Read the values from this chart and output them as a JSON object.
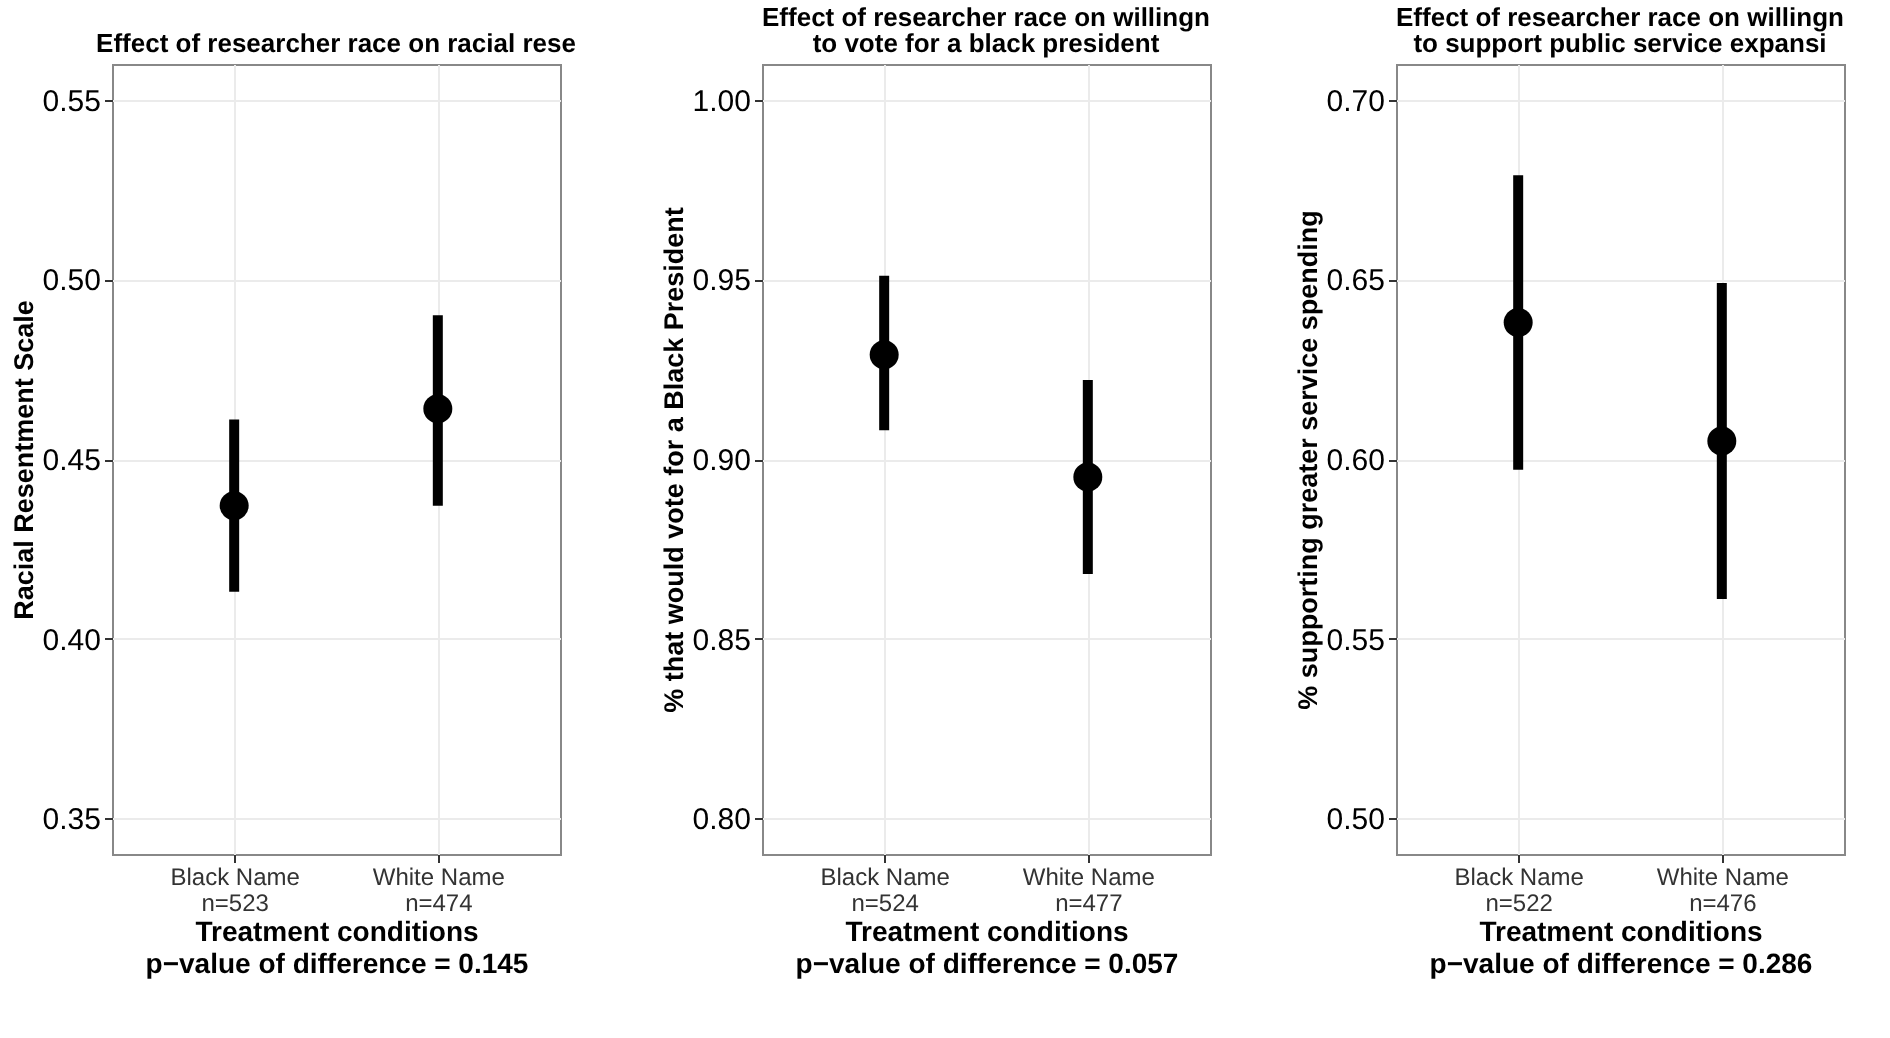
{
  "chart_data": [
    {
      "type": "scatter",
      "title": "Effect of researcher race on racial rese",
      "xlabel": "Treatment conditions",
      "ylabel": "Racial Resentment Scale",
      "annotations": [
        "p−value of difference = 0.145"
      ],
      "categories": [
        "Black Name\nn=523",
        "White Name\nn=474"
      ],
      "values": [
        0.437,
        0.464
      ],
      "errors": [
        [
          0.413,
          0.461
        ],
        [
          0.437,
          0.49
        ]
      ],
      "color": "#000000",
      "marker": "circle",
      "ylim": [
        0.34,
        0.56
      ],
      "yticks": [
        {
          "value": 0.35,
          "label": "0.35"
        },
        {
          "value": 0.4,
          "label": "0.40"
        },
        {
          "value": 0.45,
          "label": "0.45"
        },
        {
          "value": 0.5,
          "label": "0.50"
        },
        {
          "value": 0.55,
          "label": "0.55"
        }
      ],
      "grid": true
    },
    {
      "type": "scatter",
      "title": "Effect of researcher race on willingn\nto vote for a black president",
      "xlabel": "Treatment conditions",
      "ylabel": "% that would vote for a Black President",
      "annotations": [
        "p−value of difference = 0.057"
      ],
      "categories": [
        "Black Name\nn=524",
        "White Name\nn=477"
      ],
      "values": [
        0.929,
        0.895
      ],
      "errors": [
        [
          0.908,
          0.951
        ],
        [
          0.868,
          0.922
        ]
      ],
      "color": "#000000",
      "marker": "circle",
      "ylim": [
        0.79,
        1.01
      ],
      "yticks": [
        {
          "value": 0.8,
          "label": "0.80"
        },
        {
          "value": 0.85,
          "label": "0.85"
        },
        {
          "value": 0.9,
          "label": "0.90"
        },
        {
          "value": 0.95,
          "label": "0.95"
        },
        {
          "value": 1.0,
          "label": "1.00"
        }
      ],
      "grid": true
    },
    {
      "type": "scatter",
      "title": "Effect of researcher race on willingn\nto support public service expansi",
      "xlabel": "Treatment conditions",
      "ylabel": "% supporting greater service spending",
      "annotations": [
        "p−value of difference = 0.286"
      ],
      "categories": [
        "Black Name\nn=522",
        "White Name\nn=476"
      ],
      "values": [
        0.638,
        0.605
      ],
      "errors": [
        [
          0.597,
          0.679
        ],
        [
          0.561,
          0.649
        ]
      ],
      "color": "#000000",
      "marker": "circle",
      "ylim": [
        0.49,
        0.71
      ],
      "yticks": [
        {
          "value": 0.5,
          "label": "0.50"
        },
        {
          "value": 0.55,
          "label": "0.55"
        },
        {
          "value": 0.6,
          "label": "0.60"
        },
        {
          "value": 0.65,
          "label": "0.65"
        },
        {
          "value": 0.7,
          "label": "0.70"
        }
      ],
      "grid": true
    }
  ]
}
